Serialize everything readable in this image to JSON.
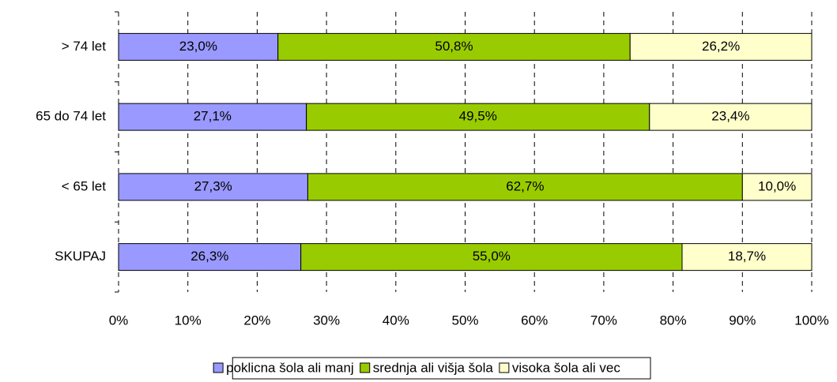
{
  "chart_data": {
    "type": "bar",
    "orientation": "horizontal",
    "stacked": true,
    "categories": [
      "> 74 let",
      "65 do 74 let",
      "< 65 let",
      "SKUPAJ"
    ],
    "series": [
      {
        "name": "poklicna šola ali manj",
        "color": "#9999ff",
        "values": [
          23.0,
          27.1,
          27.3,
          26.3
        ],
        "value_labels": [
          "23,0%",
          "27,1%",
          "27,3%",
          "26,3%"
        ]
      },
      {
        "name": "srednja ali višja šola",
        "color": "#99cc00",
        "values": [
          50.8,
          49.5,
          62.7,
          55.0
        ],
        "value_labels": [
          "50,8%",
          "49,5%",
          "62,7%",
          "55,0%"
        ]
      },
      {
        "name": "visoka šola ali vec",
        "color": "#ffffcc",
        "values": [
          26.2,
          23.4,
          10.0,
          18.7
        ],
        "value_labels": [
          "26,2%",
          "23,4%",
          "10,0%",
          "18,7%"
        ]
      }
    ],
    "xlim": [
      0,
      100
    ],
    "xticks": [
      {
        "value": 0,
        "label": "0%"
      },
      {
        "value": 10,
        "label": "10%"
      },
      {
        "value": 20,
        "label": "20%"
      },
      {
        "value": 30,
        "label": "30%"
      },
      {
        "value": 40,
        "label": "40%"
      },
      {
        "value": 50,
        "label": "50%"
      },
      {
        "value": 60,
        "label": "60%"
      },
      {
        "value": 70,
        "label": "70%"
      },
      {
        "value": 80,
        "label": "80%"
      },
      {
        "value": 90,
        "label": "90%"
      },
      {
        "value": 100,
        "label": "100%"
      }
    ],
    "grid": true,
    "legend": "bottom"
  }
}
